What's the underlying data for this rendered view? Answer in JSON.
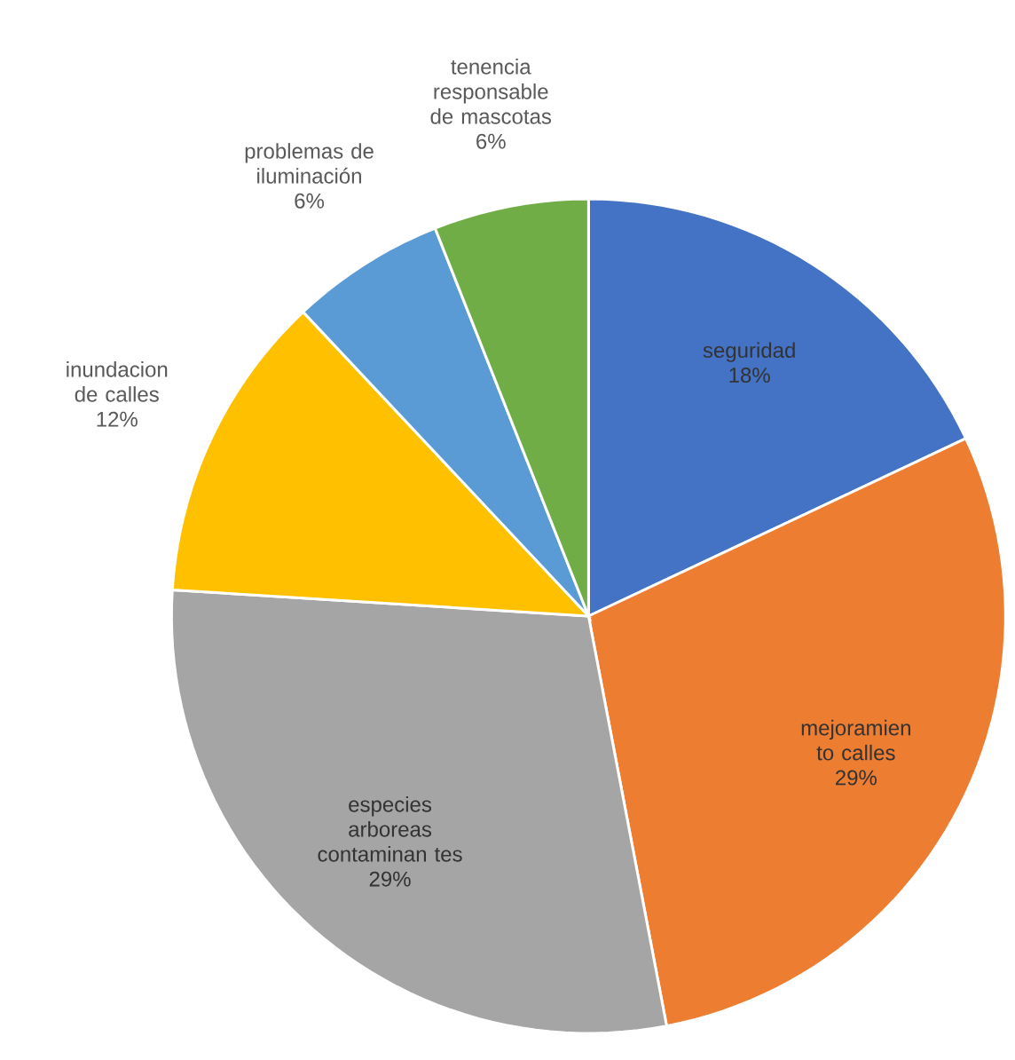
{
  "chart_data": {
    "type": "pie",
    "categories": [
      "seguridad",
      "mejoramien to calles",
      "especies arboreas contaminan tes",
      "inundacion de calles",
      "problemas de iluminación",
      "tenencia responsable de mascotas"
    ],
    "values": [
      18,
      29,
      29,
      12,
      6,
      6
    ],
    "colors": [
      "#4472c4",
      "#ed7d31",
      "#a5a5a5",
      "#ffc000",
      "#5b9bd5",
      "#70ad47"
    ],
    "value_labels": [
      "18%",
      "29%",
      "29%",
      "12%",
      "6%",
      "6%"
    ]
  }
}
